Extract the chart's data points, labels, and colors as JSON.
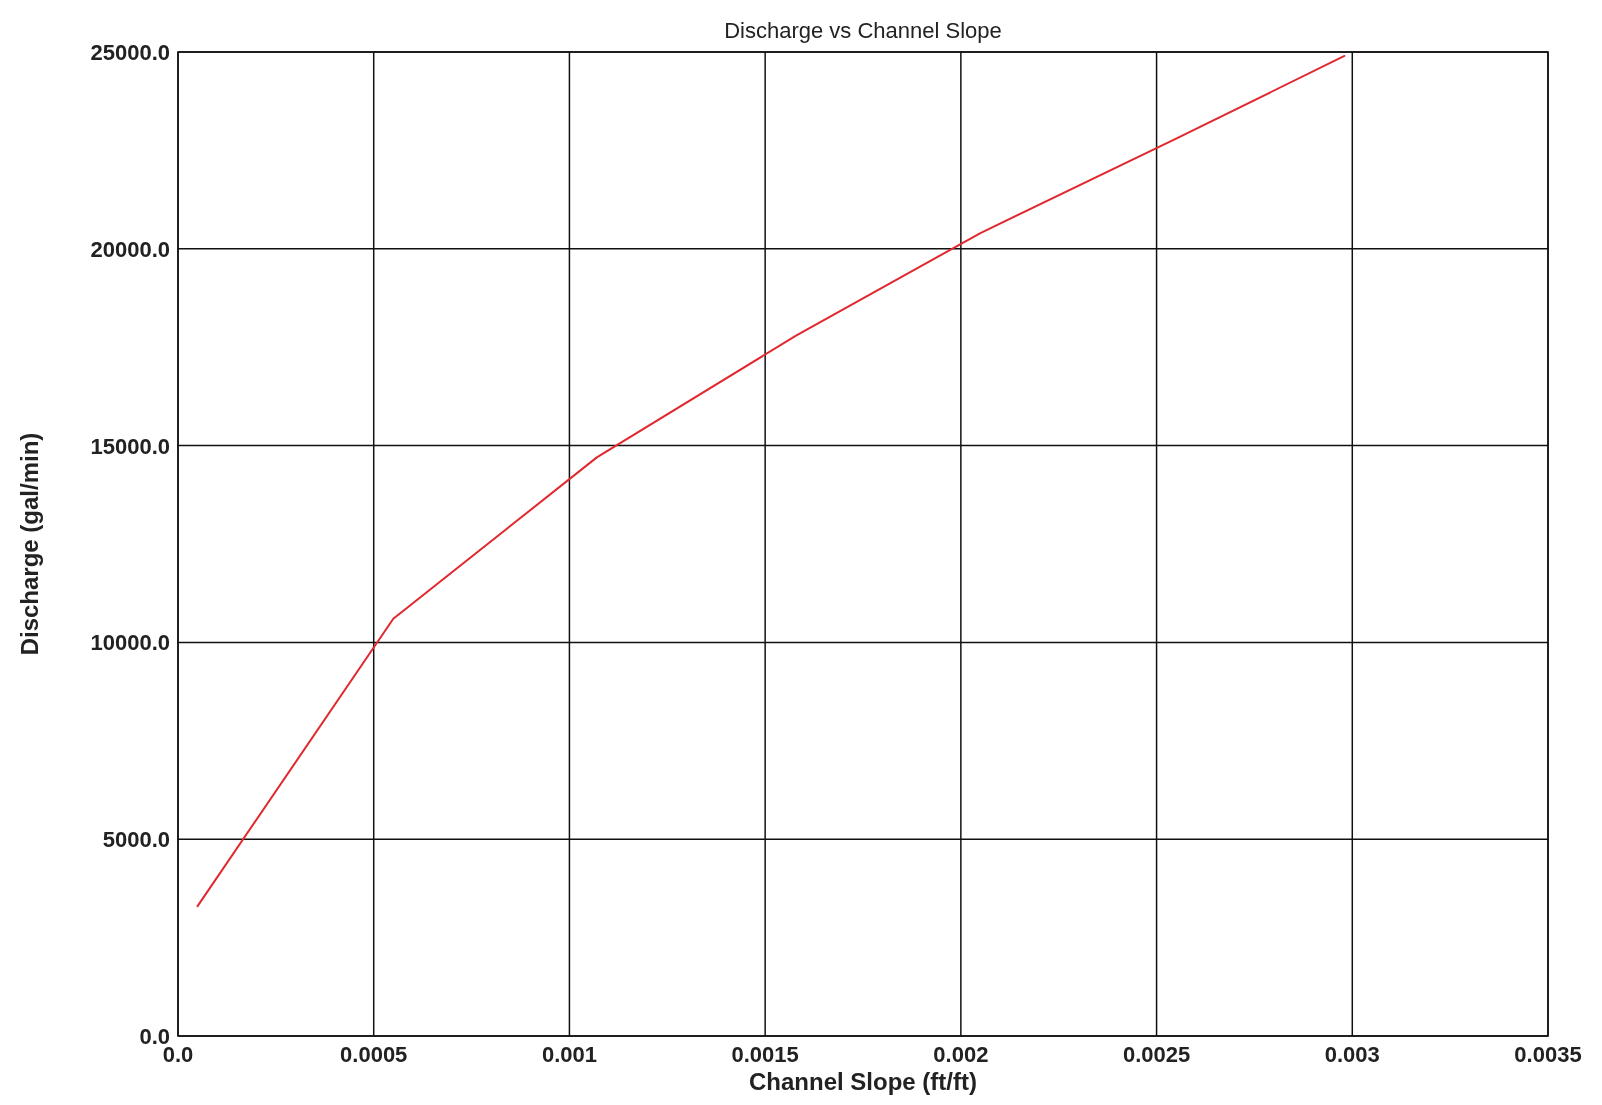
{
  "chart_data": {
    "type": "line",
    "title": "Discharge vs Channel Slope",
    "xlabel": "Channel Slope (ft/ft)",
    "ylabel": "Discharge (gal/min)",
    "series": [
      {
        "color": "#e0282e",
        "x": [
          5e-05,
          0.00055,
          0.00107,
          0.00158,
          0.00205,
          0.00255,
          0.00298
        ],
        "values": [
          3300,
          10600,
          14700,
          17800,
          20400,
          22800,
          24900
        ]
      }
    ],
    "xlim": [
      0,
      0.0035
    ],
    "ylim": [
      0,
      25000
    ],
    "xticks": [
      {
        "value": 0,
        "label": "0.0"
      },
      0.0005,
      0.001,
      0.0015,
      0.002,
      0.0025,
      0.003,
      0.0035
    ],
    "yticks": [
      {
        "value": 0,
        "label": "0.0"
      },
      {
        "value": 5000,
        "label": "5000.0"
      },
      {
        "value": 10000,
        "label": "10000.0"
      },
      {
        "value": 15000,
        "label": "15000.0"
      },
      {
        "value": 20000,
        "label": "20000.0"
      },
      {
        "value": 25000,
        "label": "25000.0"
      }
    ],
    "grid": true,
    "marker": "none",
    "line_style": "solid"
  }
}
